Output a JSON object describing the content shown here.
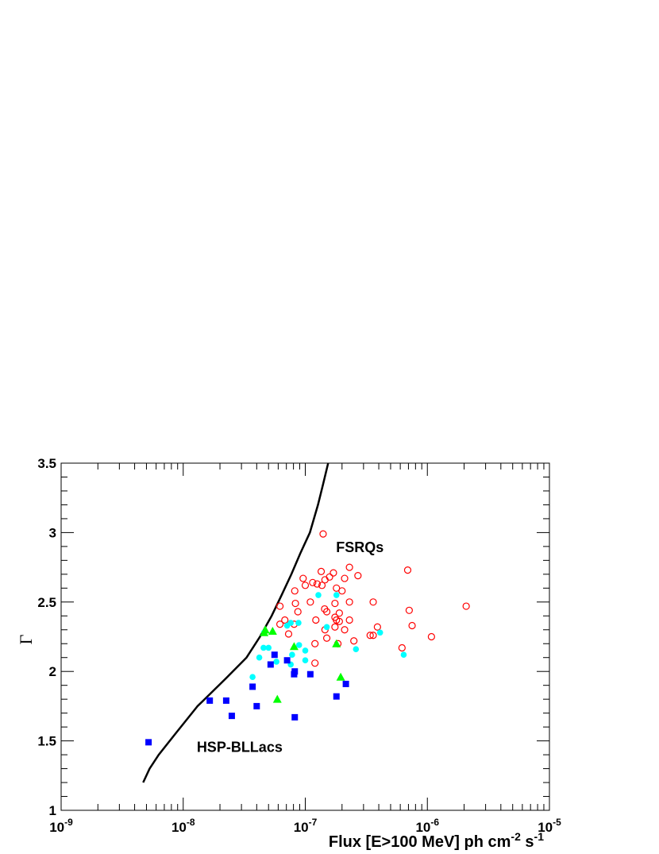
{
  "chart_data": {
    "type": "scatter",
    "title": "",
    "xlabel": {
      "main": "Flux [E>100 MeV] ph cm",
      "exp1": "-2",
      "mid": " s",
      "exp2": "-1"
    },
    "ylabel": "Γ",
    "x_scale": "log",
    "xlim": [
      1e-09,
      1e-05
    ],
    "ylim": [
      1,
      3.5
    ],
    "x_ticks": [
      {
        "value": 1e-09,
        "base": "10",
        "exp": "-9"
      },
      {
        "value": 1e-08,
        "base": "10",
        "exp": "-8"
      },
      {
        "value": 1e-07,
        "base": "10",
        "exp": "-7"
      },
      {
        "value": 1e-06,
        "base": "10",
        "exp": "-6"
      },
      {
        "value": 1e-05,
        "base": "10",
        "exp": "-5"
      }
    ],
    "y_ticks": [
      {
        "value": 1,
        "label": "1"
      },
      {
        "value": 1.5,
        "label": "1.5"
      },
      {
        "value": 2,
        "label": "2"
      },
      {
        "value": 2.5,
        "label": "2.5"
      },
      {
        "value": 3,
        "label": "3"
      },
      {
        "value": 3.5,
        "label": "3.5"
      }
    ],
    "grid": false,
    "annotations": [
      {
        "text": "FSRQs",
        "x": 2.8e-07,
        "y": 2.86
      },
      {
        "text": "HSP-BLLacs",
        "x": 2.9e-08,
        "y": 1.42
      }
    ],
    "limit_curve": {
      "color": "#000000",
      "points": [
        [
          4.7e-09,
          1.2
        ],
        [
          5.3e-09,
          1.3
        ],
        [
          6.3e-09,
          1.4
        ],
        [
          8.6e-09,
          1.55
        ],
        [
          1.31e-08,
          1.75
        ],
        [
          2.24e-08,
          1.95
        ],
        [
          3.3e-08,
          2.1
        ],
        [
          4.25e-08,
          2.25
        ],
        [
          5.3e-08,
          2.4
        ],
        [
          6.4e-08,
          2.55
        ],
        [
          7.7e-08,
          2.7
        ],
        [
          9.1e-08,
          2.85
        ],
        [
          1.09e-07,
          3.0
        ],
        [
          1.27e-07,
          3.2
        ],
        [
          1.4e-07,
          3.35
        ],
        [
          1.54e-07,
          3.5
        ]
      ]
    },
    "series": [
      {
        "marker": "open-circle",
        "color": "#ff0000",
        "points": [
          [
            1.4e-07,
            2.99
          ],
          [
            2.3e-07,
            2.75
          ],
          [
            1.35e-07,
            2.72
          ],
          [
            1.7e-07,
            2.71
          ],
          [
            6.9e-07,
            2.73
          ],
          [
            1.58e-07,
            2.68
          ],
          [
            1.45e-07,
            2.66
          ],
          [
            9.6e-08,
            2.67
          ],
          [
            2.7e-07,
            2.69
          ],
          [
            2.1e-07,
            2.67
          ],
          [
            1.15e-07,
            2.64
          ],
          [
            1.25e-07,
            2.63
          ],
          [
            1e-07,
            2.62
          ],
          [
            1.37e-07,
            2.62
          ],
          [
            1.8e-07,
            2.6
          ],
          [
            8.2e-08,
            2.58
          ],
          [
            2e-07,
            2.58
          ],
          [
            3.6e-07,
            2.5
          ],
          [
            2.08e-06,
            2.47
          ],
          [
            6.2e-08,
            2.47
          ],
          [
            1.1e-07,
            2.5
          ],
          [
            2.3e-07,
            2.5
          ],
          [
            1.75e-07,
            2.49
          ],
          [
            8.3e-08,
            2.49
          ],
          [
            7.1e-07,
            2.44
          ],
          [
            1.44e-07,
            2.45
          ],
          [
            8.7e-08,
            2.43
          ],
          [
            1.5e-07,
            2.43
          ],
          [
            1.9e-07,
            2.42
          ],
          [
            1.75e-07,
            2.39
          ],
          [
            1.8e-07,
            2.37
          ],
          [
            1.22e-07,
            2.37
          ],
          [
            2.3e-07,
            2.37
          ],
          [
            6.8e-08,
            2.37
          ],
          [
            1.9e-07,
            2.36
          ],
          [
            8.1e-08,
            2.34
          ],
          [
            6.2e-08,
            2.34
          ],
          [
            3.9e-07,
            2.32
          ],
          [
            7.5e-07,
            2.33
          ],
          [
            1.75e-07,
            2.32
          ],
          [
            2.1e-07,
            2.3
          ],
          [
            1.45e-07,
            2.3
          ],
          [
            7.3e-08,
            2.27
          ],
          [
            3.4e-07,
            2.26
          ],
          [
            3.6e-07,
            2.26
          ],
          [
            1.08e-06,
            2.25
          ],
          [
            1.5e-07,
            2.24
          ],
          [
            2.5e-07,
            2.22
          ],
          [
            1.2e-07,
            2.2
          ],
          [
            1.85e-07,
            2.2
          ],
          [
            6.2e-07,
            2.17
          ],
          [
            1.2e-07,
            2.06
          ]
        ]
      },
      {
        "marker": "filled-circle",
        "color": "#00ffff",
        "points": [
          [
            1.28e-07,
            2.55
          ],
          [
            1.8e-07,
            2.55
          ],
          [
            8.8e-08,
            2.35
          ],
          [
            7.6e-08,
            2.35
          ],
          [
            7.1e-08,
            2.33
          ],
          [
            1.5e-07,
            2.32
          ],
          [
            4.1e-07,
            2.28
          ],
          [
            4.6e-08,
            2.28
          ],
          [
            8.9e-08,
            2.19
          ],
          [
            5e-08,
            2.17
          ],
          [
            4.55e-08,
            2.17
          ],
          [
            2.6e-07,
            2.16
          ],
          [
            1e-07,
            2.15
          ],
          [
            6.4e-07,
            2.12
          ],
          [
            7.8e-08,
            2.12
          ],
          [
            4.2e-08,
            2.1
          ],
          [
            1e-07,
            2.08
          ],
          [
            5.8e-08,
            2.07
          ],
          [
            7.6e-08,
            2.05
          ],
          [
            3.7e-08,
            1.96
          ]
        ]
      },
      {
        "marker": "filled-triangle",
        "color": "#00ff00",
        "points": [
          [
            4.7e-08,
            2.3
          ],
          [
            5.4e-08,
            2.29
          ],
          [
            4.6e-08,
            2.28
          ],
          [
            1.8e-07,
            2.2
          ],
          [
            8.1e-08,
            2.18
          ],
          [
            1.95e-07,
            1.96
          ],
          [
            5.9e-08,
            1.8
          ]
        ]
      },
      {
        "marker": "filled-square",
        "color": "#0000ff",
        "points": [
          [
            5.6e-08,
            2.12
          ],
          [
            7.1e-08,
            2.08
          ],
          [
            5.2e-08,
            2.05
          ],
          [
            8.2e-08,
            2.0
          ],
          [
            8.1e-08,
            1.98
          ],
          [
            1.1e-07,
            1.98
          ],
          [
            2.15e-07,
            1.91
          ],
          [
            3.7e-08,
            1.89
          ],
          [
            1.8e-07,
            1.82
          ],
          [
            1.65e-08,
            1.79
          ],
          [
            2.25e-08,
            1.79
          ],
          [
            4e-08,
            1.75
          ],
          [
            2.5e-08,
            1.68
          ],
          [
            8.2e-08,
            1.67
          ],
          [
            5.2e-09,
            1.49
          ]
        ]
      }
    ]
  }
}
